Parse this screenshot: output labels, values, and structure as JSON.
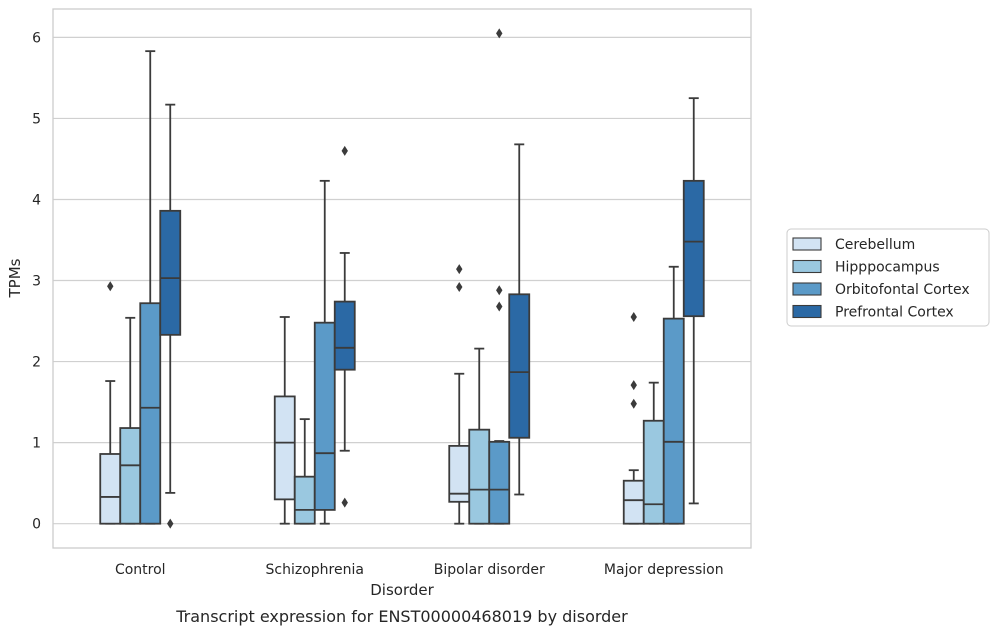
{
  "caption": "Transcript expression for ENST00000468019 by disorder",
  "chart_data": {
    "type": "boxplot",
    "title": "",
    "xlabel": "Disorder",
    "ylabel": "TPMs",
    "ylim": [
      -0.3,
      6.35
    ],
    "yticks": [
      "0",
      "1",
      "2",
      "3",
      "4",
      "5",
      "6"
    ],
    "grid": "horizontal",
    "legend_position": "right",
    "categories": [
      "Control",
      "Schizophrenia",
      "Bipolar disorder",
      "Major depression"
    ],
    "series": [
      {
        "name": "Cerebellum",
        "color": "#d2e3f3",
        "boxes": [
          {
            "whislo": 0,
            "q1": 0,
            "med": 0.33,
            "q3": 0.86,
            "whishi": 1.76,
            "fliers": [
              2.93
            ]
          },
          {
            "whislo": 0,
            "q1": 0.3,
            "med": 1.0,
            "q3": 1.57,
            "whishi": 2.55,
            "fliers": []
          },
          {
            "whislo": 0,
            "q1": 0.27,
            "med": 0.37,
            "q3": 0.96,
            "whishi": 1.85,
            "fliers": [
              2.92,
              3.14
            ]
          },
          {
            "whislo": 0,
            "q1": 0,
            "med": 0.29,
            "q3": 0.53,
            "whishi": 0.66,
            "fliers": [
              1.48,
              1.71,
              2.55
            ]
          }
        ]
      },
      {
        "name": "Hipppocampus",
        "color": "#9ac8e0",
        "boxes": [
          {
            "whislo": 0,
            "q1": 0,
            "med": 0.72,
            "q3": 1.18,
            "whishi": 2.54,
            "fliers": []
          },
          {
            "whislo": 0,
            "q1": 0,
            "med": 0.17,
            "q3": 0.58,
            "whishi": 1.29,
            "fliers": []
          },
          {
            "whislo": 0,
            "q1": 0,
            "med": 0.42,
            "q3": 1.16,
            "whishi": 2.16,
            "fliers": []
          },
          {
            "whislo": 0,
            "q1": 0,
            "med": 0.24,
            "q3": 1.27,
            "whishi": 1.74,
            "fliers": []
          }
        ]
      },
      {
        "name": "Orbitofontal Cortex",
        "color": "#5b9ac8",
        "boxes": [
          {
            "whislo": 0,
            "q1": 0,
            "med": 1.43,
            "q3": 2.72,
            "whishi": 5.83,
            "fliers": []
          },
          {
            "whislo": 0,
            "q1": 0.17,
            "med": 0.87,
            "q3": 2.48,
            "whishi": 4.23,
            "fliers": []
          },
          {
            "whislo": 0,
            "q1": 0,
            "med": 0.42,
            "q3": 1.01,
            "whishi": 1.02,
            "fliers": [
              2.68,
              2.88,
              6.05
            ]
          },
          {
            "whislo": 0,
            "q1": 0,
            "med": 1.01,
            "q3": 2.53,
            "whishi": 3.17,
            "fliers": []
          }
        ]
      },
      {
        "name": "Prefrontal Cortex",
        "color": "#2b69a5",
        "boxes": [
          {
            "whislo": 0.38,
            "q1": 2.33,
            "med": 3.03,
            "q3": 3.86,
            "whishi": 5.17,
            "fliers": [
              0
            ]
          },
          {
            "whislo": 0.9,
            "q1": 1.9,
            "med": 2.17,
            "q3": 2.74,
            "whishi": 3.34,
            "fliers": [
              0.26,
              4.6
            ]
          },
          {
            "whislo": 0.36,
            "q1": 1.06,
            "med": 1.87,
            "q3": 2.83,
            "whishi": 4.68,
            "fliers": []
          },
          {
            "whislo": 0.25,
            "q1": 2.56,
            "med": 3.48,
            "q3": 4.23,
            "whishi": 5.25,
            "fliers": []
          }
        ]
      }
    ]
  }
}
